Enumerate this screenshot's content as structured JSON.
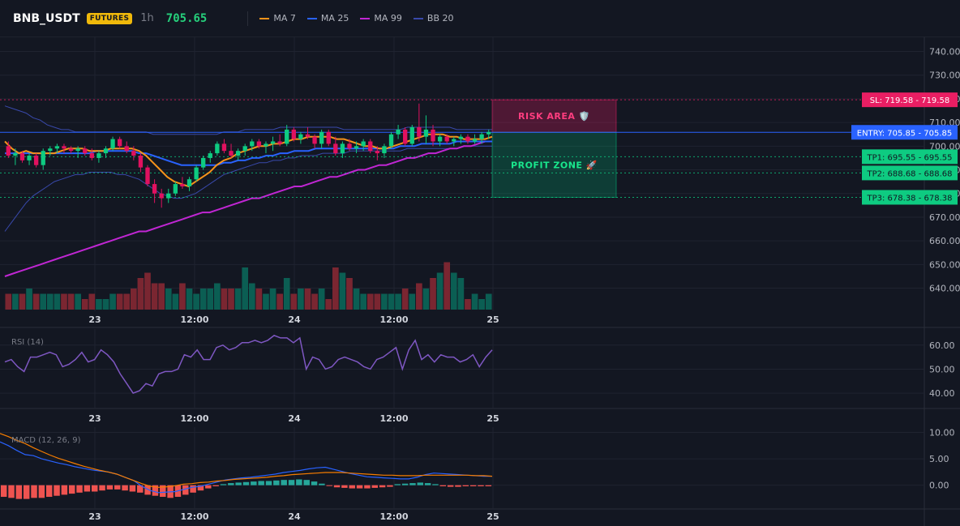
{
  "header": {
    "symbol": "BNB_USDT",
    "badge": "FUTURES",
    "timeframe": "1h",
    "price": "705.65",
    "legend": [
      {
        "label": "MA 7",
        "color": "#f7931a"
      },
      {
        "label": "MA 25",
        "color": "#2962ff"
      },
      {
        "label": "MA 99",
        "color": "#c026d3"
      },
      {
        "label": "BB 20",
        "color": "#3949ab"
      }
    ]
  },
  "colors": {
    "up": "#089981",
    "down": "#f23645",
    "up_bright": "#0ecb81",
    "down_bright": "#e0115f",
    "bb": "#3949ab",
    "rsi": "#7e57c2",
    "macd": "#2962ff",
    "signal": "#f57c00",
    "risk": "#e91e63",
    "profit": "#00c77f",
    "entry": "#2962ff"
  },
  "chart_data": [
    {
      "type": "candlestick",
      "title": "BNB_USDT",
      "x_ticks": [
        "23",
        "12:00",
        "24",
        "12:00",
        "25"
      ],
      "y_ticks": [
        640,
        650,
        660,
        670,
        680,
        690,
        700,
        710,
        720,
        730,
        740
      ],
      "ylim": [
        633,
        746
      ],
      "candles": [
        [
          700,
          702,
          695,
          696
        ],
        [
          696,
          699,
          692,
          697
        ],
        [
          697,
          698,
          693,
          694
        ],
        [
          694,
          697,
          692,
          696
        ],
        [
          696,
          697,
          691,
          692
        ],
        [
          692,
          699,
          690,
          698
        ],
        [
          698,
          700,
          696,
          699
        ],
        [
          699,
          701,
          697,
          700
        ],
        [
          700,
          701,
          697,
          699
        ],
        [
          699,
          700,
          697,
          698
        ],
        [
          698,
          700,
          695,
          699
        ],
        [
          699,
          700,
          696,
          697
        ],
        [
          697,
          699,
          694,
          695
        ],
        [
          695,
          698,
          693,
          697
        ],
        [
          697,
          700,
          695,
          699
        ],
        [
          699,
          704,
          698,
          703
        ],
        [
          703,
          704,
          699,
          700
        ],
        [
          700,
          702,
          697,
          698
        ],
        [
          698,
          700,
          694,
          696
        ],
        [
          696,
          697,
          689,
          691
        ],
        [
          691,
          692,
          683,
          684
        ],
        [
          684,
          686,
          676,
          680
        ],
        [
          680,
          682,
          674,
          678
        ],
        [
          678,
          682,
          676,
          680
        ],
        [
          680,
          685,
          679,
          684
        ],
        [
          684,
          687,
          682,
          683
        ],
        [
          683,
          687,
          681,
          686
        ],
        [
          686,
          692,
          685,
          691
        ],
        [
          691,
          696,
          690,
          695
        ],
        [
          695,
          698,
          693,
          697
        ],
        [
          697,
          702,
          696,
          701
        ],
        [
          701,
          703,
          697,
          698
        ],
        [
          698,
          701,
          695,
          696
        ],
        [
          696,
          699,
          694,
          698
        ],
        [
          698,
          701,
          696,
          700
        ],
        [
          700,
          703,
          698,
          702
        ],
        [
          702,
          703,
          699,
          700
        ],
        [
          700,
          702,
          697,
          701
        ],
        [
          701,
          704,
          698,
          702
        ],
        [
          702,
          705,
          700,
          701
        ],
        [
          701,
          709,
          700,
          707
        ],
        [
          707,
          708,
          702,
          703
        ],
        [
          703,
          706,
          701,
          705
        ],
        [
          705,
          708,
          703,
          704
        ],
        [
          704,
          705,
          699,
          701
        ],
        [
          701,
          707,
          699,
          706
        ],
        [
          706,
          707,
          700,
          701
        ],
        [
          701,
          704,
          696,
          697
        ],
        [
          697,
          702,
          695,
          701
        ],
        [
          701,
          703,
          698,
          699
        ],
        [
          699,
          702,
          697,
          700
        ],
        [
          700,
          703,
          698,
          702
        ],
        [
          702,
          703,
          697,
          698
        ],
        [
          698,
          700,
          694,
          697
        ],
        [
          697,
          701,
          695,
          700
        ],
        [
          700,
          706,
          699,
          705
        ],
        [
          705,
          709,
          703,
          707
        ],
        [
          707,
          708,
          700,
          701
        ],
        [
          701,
          709,
          700,
          708
        ],
        [
          708,
          718,
          702,
          704
        ],
        [
          704,
          713,
          701,
          707
        ],
        [
          707,
          709,
          700,
          702
        ],
        [
          702,
          705,
          700,
          704
        ],
        [
          704,
          705,
          701,
          702
        ],
        [
          702,
          704,
          700,
          703
        ],
        [
          703,
          705,
          701,
          704
        ],
        [
          704,
          705,
          701,
          702
        ],
        [
          702,
          705,
          701,
          703
        ],
        [
          703,
          706,
          701,
          705
        ],
        [
          705,
          707,
          703,
          706
        ]
      ],
      "ma7": [
        702,
        699,
        697,
        698,
        697,
        697,
        697,
        697,
        698,
        699,
        699,
        699,
        698,
        698,
        698,
        699,
        699,
        699,
        699,
        698,
        696,
        693,
        690,
        687,
        685,
        684,
        683,
        685,
        687,
        689,
        692,
        694,
        695,
        697,
        698,
        699,
        700,
        700,
        701,
        701,
        702,
        703,
        703,
        704,
        704,
        704,
        704,
        703,
        703,
        702,
        701,
        700,
        700,
        699,
        699,
        700,
        701,
        702,
        703,
        704,
        705,
        705,
        705,
        704,
        704,
        703,
        703,
        703,
        703,
        704
      ],
      "ma25": [
        697,
        697,
        697,
        697,
        697,
        697,
        697,
        697,
        697,
        697,
        697,
        697,
        697,
        698,
        698,
        698,
        698,
        698,
        698,
        697,
        697,
        696,
        695,
        694,
        693,
        692,
        692,
        692,
        692,
        692,
        692,
        693,
        693,
        694,
        694,
        695,
        695,
        696,
        696,
        697,
        697,
        698,
        698,
        698,
        699,
        699,
        699,
        699,
        699,
        699,
        699,
        699,
        699,
        699,
        699,
        699,
        700,
        700,
        700,
        701,
        701,
        701,
        701,
        701,
        702,
        702,
        702,
        702,
        702,
        702
      ],
      "ma99": [
        645,
        646,
        647,
        648,
        649,
        650,
        651,
        652,
        653,
        654,
        655,
        656,
        657,
        658,
        659,
        660,
        661,
        662,
        663,
        664,
        664,
        665,
        666,
        667,
        668,
        669,
        670,
        671,
        672,
        672,
        673,
        674,
        675,
        676,
        677,
        678,
        678,
        679,
        680,
        681,
        682,
        683,
        683,
        684,
        685,
        686,
        687,
        687,
        688,
        689,
        690,
        690,
        691,
        692,
        692,
        693,
        694,
        695,
        695,
        696,
        697,
        697,
        698,
        699,
        699,
        700,
        700,
        701,
        702,
        702
      ],
      "bb_upper": [
        717,
        716,
        715,
        714,
        712,
        711,
        709,
        708,
        707,
        707,
        706,
        706,
        706,
        706,
        706,
        706,
        706,
        706,
        706,
        706,
        706,
        705,
        705,
        705,
        705,
        705,
        705,
        705,
        705,
        705,
        705,
        706,
        706,
        706,
        707,
        707,
        707,
        707,
        707,
        708,
        708,
        708,
        708,
        708,
        708,
        708,
        708,
        708,
        707,
        707,
        707,
        707,
        707,
        707,
        707,
        707,
        707,
        708,
        708,
        708,
        708,
        708,
        708,
        708,
        707,
        707,
        707,
        707,
        707,
        707
      ],
      "bb_lower": [
        664,
        668,
        672,
        676,
        679,
        681,
        683,
        685,
        686,
        687,
        688,
        688,
        689,
        689,
        689,
        689,
        688,
        688,
        687,
        686,
        684,
        682,
        680,
        679,
        678,
        678,
        679,
        680,
        682,
        684,
        686,
        688,
        689,
        690,
        691,
        692,
        693,
        693,
        694,
        694,
        695,
        695,
        696,
        696,
        696,
        697,
        697,
        697,
        697,
        698,
        698,
        698,
        698,
        698,
        698,
        698,
        698,
        699,
        699,
        699,
        699,
        699,
        699,
        699,
        699,
        700,
        700,
        700,
        700,
        700
      ],
      "volume_scale": [
        3,
        3,
        3,
        4,
        3,
        3,
        3,
        3,
        3,
        3,
        3,
        2,
        3,
        2,
        2,
        3,
        3,
        3,
        4,
        6,
        7,
        5,
        5,
        4,
        3,
        5,
        4,
        3,
        4,
        4,
        5,
        4,
        4,
        4,
        8,
        5,
        4,
        3,
        4,
        3,
        6,
        3,
        4,
        4,
        3,
        4,
        2,
        8,
        7,
        6,
        4,
        3,
        3,
        3,
        3,
        3,
        3,
        4,
        3,
        5,
        4,
        6,
        7,
        9,
        7,
        6,
        2,
        3,
        2,
        3
      ],
      "levels": [
        {
          "label": "SL: 719.58 - 719.58",
          "value": 719.58,
          "kind": "sl"
        },
        {
          "label": "ENTRY: 705.85 - 705.85",
          "value": 705.85,
          "kind": "entry"
        },
        {
          "label": "TP1: 695.55 - 695.55",
          "value": 695.55,
          "kind": "tp"
        },
        {
          "label": "TP2: 688.68 - 688.68",
          "value": 688.68,
          "kind": "tp"
        },
        {
          "label": "TP3: 678.38 - 678.38",
          "value": 678.38,
          "kind": "tp"
        }
      ],
      "zones": [
        {
          "label": "RISK AREA 🛡️",
          "from": 705.85,
          "to": 719.58,
          "kind": "risk"
        },
        {
          "label": "PROFIT ZONE 🚀",
          "from": 678.38,
          "to": 705.85,
          "kind": "profit"
        }
      ]
    },
    {
      "type": "line",
      "title": "RSI (14)",
      "x_ticks": [
        "23",
        "12:00",
        "24",
        "12:00",
        "25"
      ],
      "y_ticks": [
        40,
        50,
        60
      ],
      "ylim": [
        37,
        66
      ],
      "values": [
        53,
        54,
        51,
        49,
        55,
        55,
        56,
        57,
        56,
        51,
        52,
        54,
        57,
        53,
        54,
        58,
        56,
        53,
        48,
        44,
        40,
        41,
        44,
        43,
        48,
        49,
        49,
        50,
        56,
        55,
        58,
        54,
        54,
        59,
        60,
        58,
        59,
        61,
        61,
        62,
        61,
        62,
        64,
        63,
        63,
        61,
        63,
        50,
        55,
        54,
        50,
        51,
        54,
        55,
        54,
        53,
        51,
        50,
        54,
        55,
        57,
        59,
        50,
        58,
        62,
        54,
        56,
        53,
        56,
        55,
        55,
        53,
        54,
        56,
        51,
        55,
        58
      ],
      "series": [
        {
          "name": "RSI (14)",
          "values": []
        }
      ]
    },
    {
      "type": "line",
      "title": "MACD (12, 26, 9)",
      "x_ticks": [
        "23",
        "12:00",
        "24",
        "12:00",
        "25"
      ],
      "y_ticks": [
        "0.00",
        "5.00",
        "10.00"
      ],
      "ylim": [
        -4.5,
        11
      ],
      "macd": [
        8.2,
        7.5,
        6.6,
        5.8,
        5.6,
        5.0,
        4.6,
        4.2,
        3.9,
        3.5,
        3.2,
        2.9,
        2.7,
        2.5,
        2.1,
        1.5,
        0.9,
        -0.2,
        -1.0,
        -1.4,
        -1.3,
        -1.2,
        -0.8,
        -0.4,
        -0.2,
        0.2,
        0.6,
        1.0,
        1.2,
        1.4,
        1.5,
        1.7,
        1.9,
        2.1,
        2.4,
        2.6,
        2.8,
        3.1,
        3.3,
        3.4,
        3.0,
        2.6,
        2.2,
        1.9,
        1.6,
        1.5,
        1.4,
        1.3,
        1.2,
        1.2,
        1.5,
        2.0,
        2.3,
        2.2,
        2.1,
        2.0,
        1.9,
        1.8,
        1.7,
        1.7
      ],
      "signal": [
        9.8,
        9.2,
        8.5,
        7.9,
        7.1,
        6.4,
        5.7,
        5.1,
        4.6,
        4.1,
        3.6,
        3.2,
        2.8,
        2.5,
        2.1,
        1.5,
        0.9,
        0.3,
        -0.2,
        -0.4,
        -0.3,
        -0.1,
        0.2,
        0.3,
        0.5,
        0.6,
        0.8,
        0.9,
        1.1,
        1.2,
        1.3,
        1.4,
        1.5,
        1.7,
        1.8,
        2.0,
        2.1,
        2.2,
        2.3,
        2.4,
        2.4,
        2.4,
        2.3,
        2.2,
        2.1,
        2.0,
        1.9,
        1.9,
        1.8,
        1.8,
        1.8,
        1.9,
        1.9,
        1.9,
        1.9,
        1.9,
        1.9,
        1.8,
        1.8,
        1.7
      ],
      "histogram": [
        -2.2,
        -2.4,
        -2.6,
        -2.6,
        -2.4,
        -2.4,
        -2.2,
        -2.0,
        -1.8,
        -1.6,
        -1.4,
        -1.2,
        -1.2,
        -1.0,
        -0.8,
        -0.8,
        -1.0,
        -1.2,
        -1.4,
        -1.8,
        -2.0,
        -2.2,
        -2.4,
        -2.2,
        -1.8,
        -1.4,
        -1.0,
        -0.6,
        -0.2,
        0.2,
        0.4,
        0.5,
        0.6,
        0.7,
        0.8,
        0.8,
        0.9,
        1.0,
        1.0,
        1.1,
        1.0,
        0.7,
        0.3,
        -0.1,
        -0.4,
        -0.5,
        -0.6,
        -0.6,
        -0.6,
        -0.5,
        -0.4,
        -0.3,
        0.2,
        0.3,
        0.4,
        0.5,
        0.4,
        0.2,
        -0.2,
        -0.3,
        -0.3,
        -0.2,
        -0.2,
        -0.2,
        -0.2
      ],
      "series": [
        {
          "name": "MACD (12, 26, 9)",
          "values": []
        }
      ]
    }
  ]
}
